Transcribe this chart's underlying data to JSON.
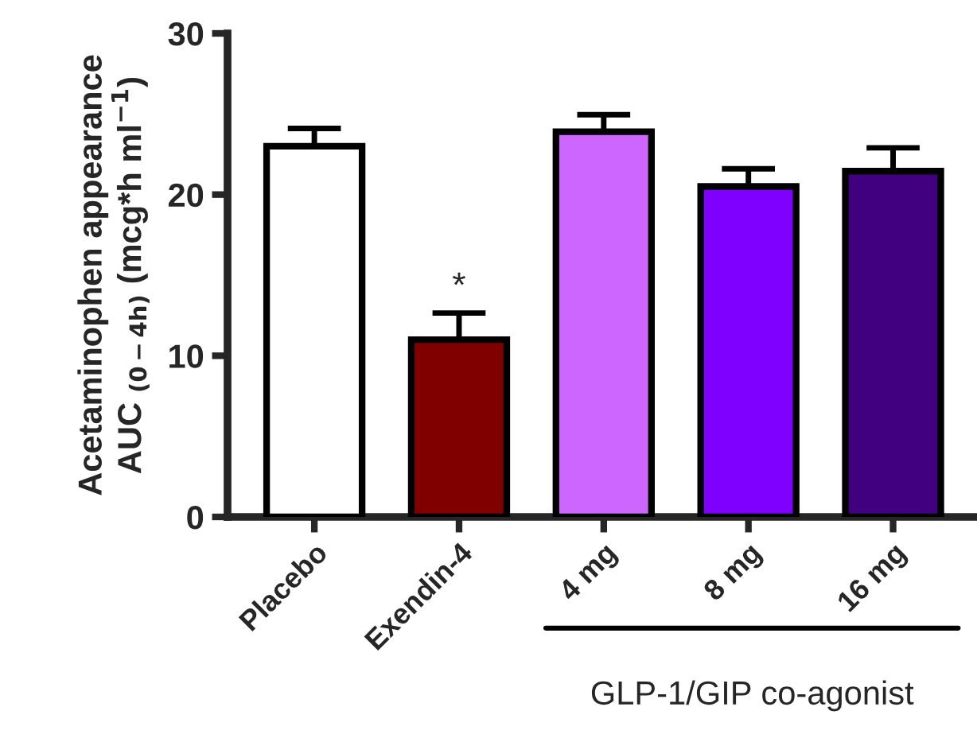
{
  "chart_data": {
    "type": "bar",
    "ylabel": "Acetaminophen appearance\nAUC $_{(0−4h)}$ (mcg*h ml$^{−1}$)",
    "categories": [
      "Placebo",
      "Exendin-4",
      "4 mg",
      "8 mg",
      "16 mg"
    ],
    "values": [
      23.0,
      11.0,
      23.9,
      20.5,
      21.45
    ],
    "colors": [
      "#ffffff",
      "#800000",
      "#cc66ff",
      "#7f00ff",
      "#400080"
    ],
    "errors": [
      [
        23.0,
        24.1
      ],
      [
        11.0,
        12.65
      ],
      [
        23.9,
        24.95
      ],
      [
        20.5,
        21.6
      ],
      [
        21.45,
        22.9
      ]
    ],
    "ylim": [
      0,
      30
    ],
    "yticks": [
      0,
      10,
      20,
      30
    ],
    "annotations": [
      {
        "text": "*",
        "x": "Exendin-4",
        "y": 12.65
      },
      "GLP-1/GIP co-agonist"
    ],
    "grid": false,
    "legend": false
  }
}
